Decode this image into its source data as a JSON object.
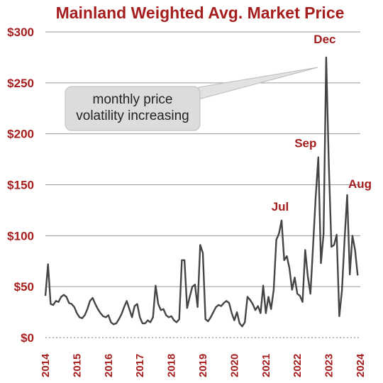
{
  "chart_data": {
    "type": "line",
    "title": "Mainland Weighted Avg. Market Price",
    "xlabel": "",
    "ylabel": "",
    "ylim": [
      0,
      300
    ],
    "xlim": [
      "2014-01",
      "2024-01"
    ],
    "grid": true,
    "y_ticks": [
      {
        "value": 0,
        "label": "$0"
      },
      {
        "value": 50,
        "label": "$50"
      },
      {
        "value": 100,
        "label": "$100"
      },
      {
        "value": 150,
        "label": "$150"
      },
      {
        "value": 200,
        "label": "$200"
      },
      {
        "value": 250,
        "label": "$250"
      },
      {
        "value": 300,
        "label": "$300"
      }
    ],
    "x_ticks": [
      "2014",
      "2015",
      "2016",
      "2017",
      "2018",
      "2019",
      "2020",
      "2021",
      "2022",
      "2023",
      "2024"
    ],
    "series": [
      {
        "color": "#454545",
        "points": [
          [
            "2014-01",
            41
          ],
          [
            "2014-02",
            72
          ],
          [
            "2014-03",
            33
          ],
          [
            "2014-04",
            32
          ],
          [
            "2014-05",
            36
          ],
          [
            "2014-06",
            35
          ],
          [
            "2014-07",
            40
          ],
          [
            "2014-08",
            42
          ],
          [
            "2014-09",
            40
          ],
          [
            "2014-10",
            34
          ],
          [
            "2014-11",
            33
          ],
          [
            "2014-12",
            30
          ],
          [
            "2015-01",
            24
          ],
          [
            "2015-02",
            20
          ],
          [
            "2015-03",
            19
          ],
          [
            "2015-04",
            22
          ],
          [
            "2015-05",
            28
          ],
          [
            "2015-06",
            36
          ],
          [
            "2015-07",
            39
          ],
          [
            "2015-08",
            33
          ],
          [
            "2015-09",
            28
          ],
          [
            "2015-10",
            24
          ],
          [
            "2015-11",
            21
          ],
          [
            "2015-12",
            20
          ],
          [
            "2016-01",
            22
          ],
          [
            "2016-02",
            15
          ],
          [
            "2016-03",
            13
          ],
          [
            "2016-04",
            14
          ],
          [
            "2016-05",
            18
          ],
          [
            "2016-06",
            23
          ],
          [
            "2016-07",
            30
          ],
          [
            "2016-08",
            36
          ],
          [
            "2016-09",
            28
          ],
          [
            "2016-10",
            20
          ],
          [
            "2016-11",
            31
          ],
          [
            "2016-12",
            33
          ],
          [
            "2017-01",
            20
          ],
          [
            "2017-02",
            14
          ],
          [
            "2017-03",
            14
          ],
          [
            "2017-04",
            17
          ],
          [
            "2017-05",
            15
          ],
          [
            "2017-06",
            20
          ],
          [
            "2017-07",
            51
          ],
          [
            "2017-08",
            33
          ],
          [
            "2017-09",
            27
          ],
          [
            "2017-10",
            28
          ],
          [
            "2017-11",
            22
          ],
          [
            "2017-12",
            20
          ],
          [
            "2018-01",
            21
          ],
          [
            "2018-02",
            17
          ],
          [
            "2018-03",
            15
          ],
          [
            "2018-04",
            18
          ],
          [
            "2018-05",
            76
          ],
          [
            "2018-06",
            76
          ],
          [
            "2018-07",
            29
          ],
          [
            "2018-08",
            40
          ],
          [
            "2018-09",
            50
          ],
          [
            "2018-10",
            52
          ],
          [
            "2018-11",
            30
          ],
          [
            "2018-12",
            91
          ],
          [
            "2019-01",
            83
          ],
          [
            "2019-02",
            18
          ],
          [
            "2019-03",
            16
          ],
          [
            "2019-04",
            20
          ],
          [
            "2019-05",
            25
          ],
          [
            "2019-06",
            30
          ],
          [
            "2019-07",
            32
          ],
          [
            "2019-08",
            31
          ],
          [
            "2019-09",
            34
          ],
          [
            "2019-10",
            36
          ],
          [
            "2019-11",
            34
          ],
          [
            "2019-12",
            24
          ],
          [
            "2020-01",
            17
          ],
          [
            "2020-02",
            25
          ],
          [
            "2020-03",
            14
          ],
          [
            "2020-04",
            11
          ],
          [
            "2020-05",
            15
          ],
          [
            "2020-06",
            40
          ],
          [
            "2020-07",
            37
          ],
          [
            "2020-08",
            33
          ],
          [
            "2020-09",
            27
          ],
          [
            "2020-10",
            31
          ],
          [
            "2020-11",
            24
          ],
          [
            "2020-12",
            51
          ],
          [
            "2021-01",
            24
          ],
          [
            "2021-02",
            40
          ],
          [
            "2021-03",
            28
          ],
          [
            "2021-04",
            47
          ],
          [
            "2021-05",
            96
          ],
          [
            "2021-06",
            102
          ],
          [
            "2021-07",
            115
          ],
          [
            "2021-08",
            76
          ],
          [
            "2021-09",
            80
          ],
          [
            "2021-10",
            68
          ],
          [
            "2021-11",
            47
          ],
          [
            "2021-12",
            59
          ],
          [
            "2022-01",
            43
          ],
          [
            "2022-02",
            41
          ],
          [
            "2022-03",
            35
          ],
          [
            "2022-04",
            86
          ],
          [
            "2022-05",
            60
          ],
          [
            "2022-06",
            43
          ],
          [
            "2022-07",
            90
          ],
          [
            "2022-08",
            138
          ],
          [
            "2022-09",
            177
          ],
          [
            "2022-10",
            73
          ],
          [
            "2022-11",
            102
          ],
          [
            "2022-12",
            275
          ],
          [
            "2023-01",
            170
          ],
          [
            "2023-02",
            89
          ],
          [
            "2023-03",
            91
          ],
          [
            "2023-04",
            101
          ],
          [
            "2023-05",
            21
          ],
          [
            "2023-06",
            46
          ],
          [
            "2023-07",
            96
          ],
          [
            "2023-08",
            140
          ],
          [
            "2023-09",
            62
          ],
          [
            "2023-10",
            100
          ],
          [
            "2023-11",
            86
          ],
          [
            "2023-12",
            61
          ]
        ]
      }
    ],
    "annotations": [
      {
        "text": "Jul",
        "x": "2021-07",
        "y": 115
      },
      {
        "text": "Sep",
        "x": "2022-09",
        "y": 177
      },
      {
        "text": "Dec",
        "x": "2022-12",
        "y": 275
      },
      {
        "text": "Aug",
        "x": "2023-08",
        "y": 140
      }
    ],
    "callout": {
      "lines": [
        "monthly price",
        "volatility increasing"
      ],
      "pointer_target": "2022-12",
      "fill": "#dcdcdc"
    },
    "colors": {
      "accent": "#a51d1d",
      "line": "#454545",
      "grid": "#9a9a9a"
    }
  }
}
